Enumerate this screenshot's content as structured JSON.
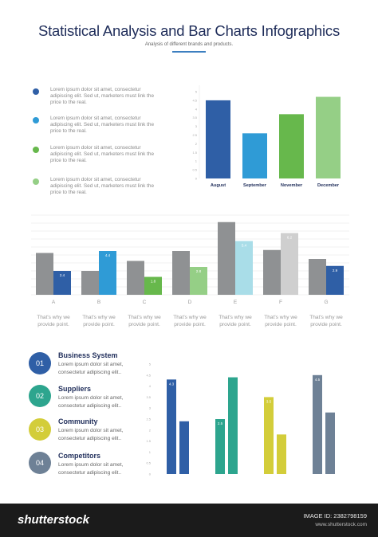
{
  "header": {
    "title": "Statistical Analysis and Bar Charts Infographics",
    "subtitle": "Analysis of different brands and products."
  },
  "legend_items": [
    {
      "text": "Lorem ipsum dolor sit amet, consectetur adipiscing elit. Sed ut, marketers must link the price to the real.",
      "color": "#2f5fa6"
    },
    {
      "text": "Lorem ipsum dolor sit amet, consectetur adipiscing elit. Sed ut, marketers must link the price to the real.",
      "color": "#2f9bd6"
    },
    {
      "text": "Lorem ipsum dolor sit amet, consectetur adipiscing elit. Sed ut, marketers must link the price to the real.",
      "color": "#67b84c"
    },
    {
      "text": "Lorem ipsum dolor sit amet, consectetur adipiscing elit. Sed ut, marketers must link the price to the real.",
      "color": "#95cf86"
    }
  ],
  "group_captions": [
    "That's why we provide point.",
    "That's why we provide point.",
    "That's why we provide point.",
    "That's why we provide point.",
    "That's why we provide point.",
    "That's why we provide point.",
    "That's why we provide point."
  ],
  "categories": [
    {
      "number": "01",
      "title": "Business System",
      "text": "Lorem ipsum dolor sit amet, consectetur adipiscing elit..",
      "color": "#2f5fa6"
    },
    {
      "number": "02",
      "title": "Suppliers",
      "text": "Lorem ipsum dolor sit amet, consectetur adipiscing elit..",
      "color": "#2da58e"
    },
    {
      "number": "03",
      "title": "Community",
      "text": "Lorem ipsum dolor sit amet, consectetur adipiscing elit..",
      "color": "#d3cd3a"
    },
    {
      "number": "04",
      "title": "Competitors",
      "text": "Lorem ipsum dolor sit amet, consectetur adipiscing elit..",
      "color": "#6e8196"
    }
  ],
  "footer": {
    "brand": "shutterstock",
    "image_id": "IMAGE ID: 2382798159",
    "site": "www.shutterstock.com"
  },
  "chart_data": [
    {
      "type": "bar",
      "categories": [
        "August",
        "September",
        "November",
        "December"
      ],
      "values": [
        4.5,
        2.6,
        3.7,
        4.7
      ],
      "colors": [
        "#2f5fa6",
        "#2f9bd6",
        "#67b84c",
        "#95cf86"
      ],
      "ylim": [
        0,
        5
      ],
      "ticks": [
        "0",
        "0.5",
        "1",
        "1.5",
        "2",
        "2.5",
        "3",
        "3.5",
        "4",
        "4.5",
        "5"
      ],
      "grid": false
    },
    {
      "type": "bar",
      "categories": [
        "A",
        "B",
        "C",
        "D",
        "E",
        "F",
        "G"
      ],
      "series": [
        {
          "values": [
            4.2,
            2.4,
            3.4,
            4.4,
            7.3,
            4.5,
            3.6
          ],
          "color": "#8f9193"
        },
        {
          "values": [
            2.4,
            4.4,
            1.8,
            2.8,
            5.4,
            6.2,
            2.9
          ],
          "colors": [
            "#2f5fa6",
            "#2f9bd6",
            "#67b84c",
            "#95cf86",
            "#a9dde8",
            "#cfcfcf",
            "#2f5fa6"
          ]
        }
      ],
      "labels": [
        "2.4",
        "4.4",
        "1.8",
        "2.8",
        "5.4",
        "6.2",
        "2.9"
      ],
      "ylim": [
        0,
        8
      ],
      "grid": true
    },
    {
      "type": "bar",
      "groups": [
        {
          "values": [
            4.3,
            2.4
          ],
          "labels": [
            "4.3",
            ""
          ],
          "color": "#2f5fa6"
        },
        {
          "values": [
            2.5,
            4.4
          ],
          "labels": [
            "2.5",
            ""
          ],
          "color": "#2da58e"
        },
        {
          "values": [
            3.5,
            1.8
          ],
          "labels": [
            "3.5",
            ""
          ],
          "color": "#d3cd3a"
        },
        {
          "values": [
            4.5,
            2.8
          ],
          "labels": [
            "4.5",
            ""
          ],
          "color": "#6e8196"
        }
      ],
      "ylim": [
        0,
        5
      ],
      "ticks": [
        "0",
        "0.5",
        "1",
        "1.5",
        "2",
        "2.5",
        "3",
        "3.5",
        "4",
        "4.5",
        "5"
      ],
      "grid": false
    }
  ]
}
